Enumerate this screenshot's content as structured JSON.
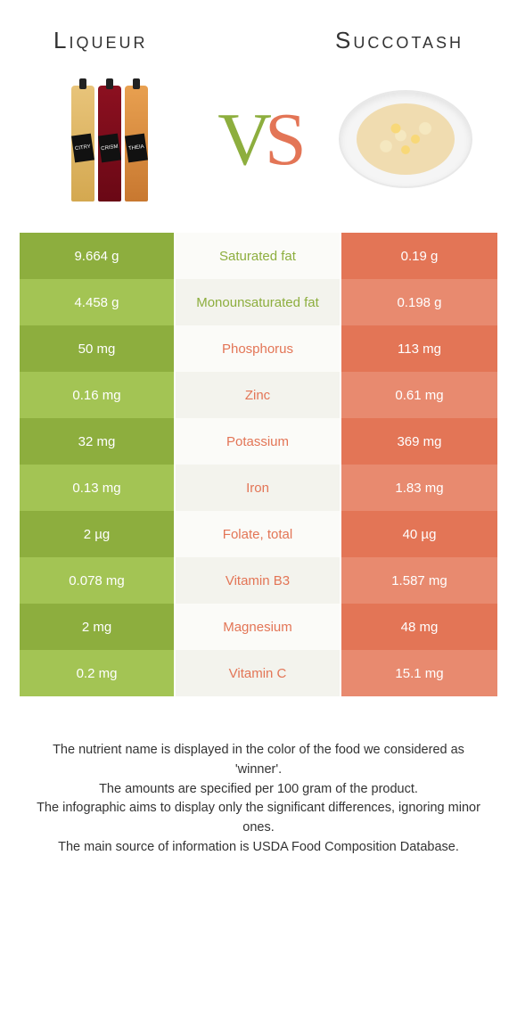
{
  "colors": {
    "green_dark": "#8dae3e",
    "green_light": "#a3c454",
    "orange_dark": "#e37556",
    "orange_light": "#e88a6f",
    "mid_odd": "#fbfbf8",
    "mid_even": "#f3f3ed",
    "text_green": "#8dae3e",
    "text_orange": "#e37556"
  },
  "left_food": "Liqueur",
  "right_food": "Succotash",
  "rows": [
    {
      "nutrient": "Saturated fat",
      "left": "9.664 g",
      "right": "0.19 g",
      "winner": "left"
    },
    {
      "nutrient": "Monounsaturated fat",
      "left": "4.458 g",
      "right": "0.198 g",
      "winner": "left"
    },
    {
      "nutrient": "Phosphorus",
      "left": "50 mg",
      "right": "113 mg",
      "winner": "right"
    },
    {
      "nutrient": "Zinc",
      "left": "0.16 mg",
      "right": "0.61 mg",
      "winner": "right"
    },
    {
      "nutrient": "Potassium",
      "left": "32 mg",
      "right": "369 mg",
      "winner": "right"
    },
    {
      "nutrient": "Iron",
      "left": "0.13 mg",
      "right": "1.83 mg",
      "winner": "right"
    },
    {
      "nutrient": "Folate, total",
      "left": "2 µg",
      "right": "40 µg",
      "winner": "right"
    },
    {
      "nutrient": "Vitamin B3",
      "left": "0.078 mg",
      "right": "1.587 mg",
      "winner": "right"
    },
    {
      "nutrient": "Magnesium",
      "left": "2 mg",
      "right": "48 mg",
      "winner": "right"
    },
    {
      "nutrient": "Vitamin C",
      "left": "0.2 mg",
      "right": "15.1 mg",
      "winner": "right"
    }
  ],
  "footer": [
    "The nutrient name is displayed in the color of the food we considered as 'winner'.",
    "The amounts are specified per 100 gram of the product.",
    "The infographic aims to display only the significant differences, ignoring minor ones.",
    "The main source of information is USDA Food Composition Database."
  ]
}
